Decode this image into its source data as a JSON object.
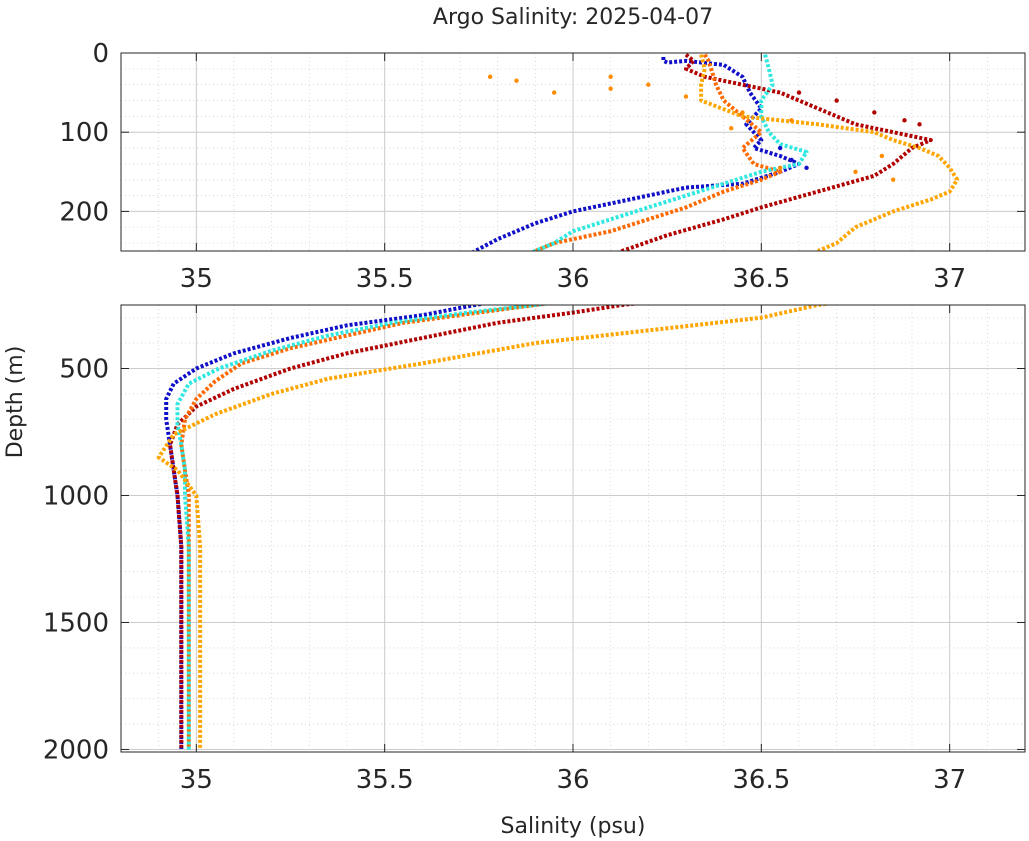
{
  "chart_data": {
    "type": "scatter",
    "title": "Argo Salinity: 2025-04-07",
    "xlabel": "Salinity (psu)",
    "ylabel": "Depth (m)",
    "xlim": [
      34.8,
      37.2
    ],
    "x_ticks": [
      "35",
      "35.5",
      "36",
      "36.5",
      "37"
    ],
    "y_reversed": true,
    "grid": true,
    "minor_grid": true,
    "panels": [
      {
        "id": "upper",
        "ylim": [
          0,
          250
        ],
        "y_ticks": [
          "0",
          "100",
          "200"
        ],
        "y_tick_values": [
          0,
          100,
          200
        ]
      },
      {
        "id": "lower",
        "ylim": [
          250,
          2010
        ],
        "y_ticks": [
          "500",
          "1000",
          "1500",
          "2000"
        ],
        "y_tick_values": [
          500,
          1000,
          1500,
          2000
        ]
      }
    ],
    "series": [
      {
        "color": "#1010c8",
        "points": [
          [
            36.24,
            5
          ],
          [
            36.24,
            10
          ],
          [
            36.25,
            12
          ],
          [
            36.3,
            10
          ],
          [
            36.4,
            15
          ],
          [
            36.45,
            30
          ],
          [
            36.47,
            50
          ],
          [
            36.5,
            70
          ],
          [
            36.46,
            90
          ],
          [
            36.5,
            110
          ],
          [
            36.48,
            120
          ],
          [
            36.55,
            130
          ],
          [
            36.6,
            140
          ],
          [
            36.55,
            150
          ],
          [
            36.45,
            165
          ],
          [
            36.3,
            170
          ],
          [
            36.15,
            185
          ],
          [
            36.0,
            200
          ],
          [
            35.9,
            215
          ],
          [
            35.8,
            235
          ],
          [
            35.74,
            250
          ],
          [
            35.6,
            290
          ],
          [
            35.4,
            330
          ],
          [
            35.25,
            380
          ],
          [
            35.1,
            440
          ],
          [
            35.0,
            500
          ],
          [
            34.94,
            560
          ],
          [
            34.92,
            620
          ],
          [
            34.92,
            700
          ],
          [
            34.93,
            800
          ],
          [
            34.94,
            900
          ],
          [
            34.95,
            1000
          ],
          [
            34.96,
            1200
          ],
          [
            34.96,
            1500
          ],
          [
            34.96,
            1800
          ],
          [
            34.96,
            2000
          ]
        ]
      },
      {
        "color": "#b00000",
        "points": [
          [
            36.3,
            2
          ],
          [
            36.32,
            10
          ],
          [
            36.3,
            20
          ],
          [
            36.35,
            30
          ],
          [
            36.45,
            40
          ],
          [
            36.55,
            50
          ],
          [
            36.65,
            70
          ],
          [
            36.75,
            90
          ],
          [
            36.85,
            100
          ],
          [
            36.95,
            110
          ],
          [
            36.9,
            120
          ],
          [
            36.85,
            140
          ],
          [
            36.8,
            155
          ],
          [
            36.65,
            175
          ],
          [
            36.5,
            195
          ],
          [
            36.4,
            210
          ],
          [
            36.25,
            230
          ],
          [
            36.13,
            250
          ],
          [
            36.0,
            280
          ],
          [
            35.8,
            320
          ],
          [
            35.6,
            380
          ],
          [
            35.4,
            440
          ],
          [
            35.25,
            500
          ],
          [
            35.1,
            580
          ],
          [
            35.0,
            650
          ],
          [
            34.95,
            720
          ],
          [
            34.93,
            800
          ],
          [
            34.94,
            900
          ],
          [
            34.95,
            1000
          ],
          [
            34.96,
            1200
          ],
          [
            34.96,
            1500
          ],
          [
            34.96,
            1800
          ],
          [
            34.96,
            2000
          ]
        ]
      },
      {
        "color": "#ff6a00",
        "points": [
          [
            36.35,
            2
          ],
          [
            36.36,
            10
          ],
          [
            36.38,
            40
          ],
          [
            36.4,
            60
          ],
          [
            36.45,
            80
          ],
          [
            36.5,
            100
          ],
          [
            36.45,
            120
          ],
          [
            36.48,
            140
          ],
          [
            36.55,
            150
          ],
          [
            36.5,
            160
          ],
          [
            36.4,
            175
          ],
          [
            36.3,
            195
          ],
          [
            36.2,
            210
          ],
          [
            36.1,
            225
          ],
          [
            35.95,
            240
          ],
          [
            35.9,
            250
          ],
          [
            35.75,
            280
          ],
          [
            35.55,
            320
          ],
          [
            35.4,
            370
          ],
          [
            35.25,
            420
          ],
          [
            35.12,
            480
          ],
          [
            35.05,
            550
          ],
          [
            35.0,
            620
          ],
          [
            34.97,
            700
          ],
          [
            34.96,
            800
          ],
          [
            34.97,
            900
          ],
          [
            34.98,
            1000
          ],
          [
            34.98,
            1200
          ],
          [
            34.98,
            1500
          ],
          [
            34.98,
            1800
          ],
          [
            34.98,
            2000
          ]
        ]
      },
      {
        "color": "#30e8e0",
        "points": [
          [
            36.51,
            2
          ],
          [
            36.52,
            20
          ],
          [
            36.53,
            40
          ],
          [
            36.5,
            60
          ],
          [
            36.5,
            80
          ],
          [
            36.52,
            100
          ],
          [
            36.55,
            115
          ],
          [
            36.62,
            125
          ],
          [
            36.6,
            140
          ],
          [
            36.5,
            150
          ],
          [
            36.4,
            165
          ],
          [
            36.3,
            180
          ],
          [
            36.2,
            195
          ],
          [
            36.1,
            210
          ],
          [
            36.0,
            225
          ],
          [
            35.95,
            240
          ],
          [
            35.9,
            250
          ],
          [
            35.72,
            280
          ],
          [
            35.52,
            320
          ],
          [
            35.35,
            370
          ],
          [
            35.2,
            430
          ],
          [
            35.06,
            500
          ],
          [
            34.98,
            560
          ],
          [
            34.95,
            640
          ],
          [
            34.95,
            720
          ],
          [
            34.96,
            800
          ],
          [
            34.97,
            900
          ],
          [
            34.97,
            1000
          ],
          [
            34.98,
            1200
          ],
          [
            34.98,
            1500
          ],
          [
            34.98,
            1800
          ],
          [
            34.98,
            2000
          ]
        ]
      },
      {
        "color": "#ffa500",
        "points": [
          [
            36.34,
            2
          ],
          [
            36.35,
            20
          ],
          [
            36.34,
            40
          ],
          [
            36.34,
            60
          ],
          [
            36.45,
            80
          ],
          [
            36.65,
            90
          ],
          [
            36.8,
            100
          ],
          [
            36.85,
            110
          ],
          [
            36.92,
            120
          ],
          [
            36.97,
            130
          ],
          [
            37.0,
            145
          ],
          [
            37.02,
            160
          ],
          [
            37.0,
            175
          ],
          [
            36.95,
            185
          ],
          [
            36.85,
            200
          ],
          [
            36.75,
            220
          ],
          [
            36.7,
            240
          ],
          [
            36.65,
            250
          ],
          [
            36.5,
            300
          ],
          [
            36.2,
            350
          ],
          [
            35.9,
            400
          ],
          [
            35.6,
            480
          ],
          [
            35.35,
            540
          ],
          [
            35.2,
            600
          ],
          [
            35.05,
            680
          ],
          [
            34.94,
            760
          ],
          [
            34.9,
            850
          ],
          [
            34.95,
            900
          ],
          [
            35.0,
            1000
          ],
          [
            35.01,
            1200
          ],
          [
            35.01,
            1500
          ],
          [
            35.01,
            1800
          ],
          [
            35.01,
            2000
          ]
        ]
      }
    ],
    "scatter_points": [
      {
        "color": "#ff8c00",
        "points": [
          [
            35.78,
            30
          ],
          [
            35.85,
            35
          ],
          [
            36.1,
            45
          ],
          [
            36.3,
            55
          ],
          [
            35.95,
            50
          ],
          [
            36.45,
            75
          ],
          [
            36.2,
            40
          ],
          [
            36.1,
            30
          ],
          [
            36.42,
            95
          ],
          [
            36.58,
            85
          ],
          [
            36.82,
            130
          ],
          [
            36.75,
            150
          ],
          [
            36.85,
            160
          ],
          [
            36.55,
            145
          ]
        ]
      },
      {
        "color": "#b00000",
        "points": [
          [
            36.6,
            50
          ],
          [
            36.7,
            60
          ],
          [
            36.8,
            75
          ],
          [
            36.88,
            85
          ],
          [
            36.92,
            90
          ]
        ]
      },
      {
        "color": "#1010c8",
        "points": [
          [
            36.55,
            120
          ],
          [
            36.58,
            135
          ],
          [
            36.62,
            145
          ]
        ]
      }
    ]
  }
}
